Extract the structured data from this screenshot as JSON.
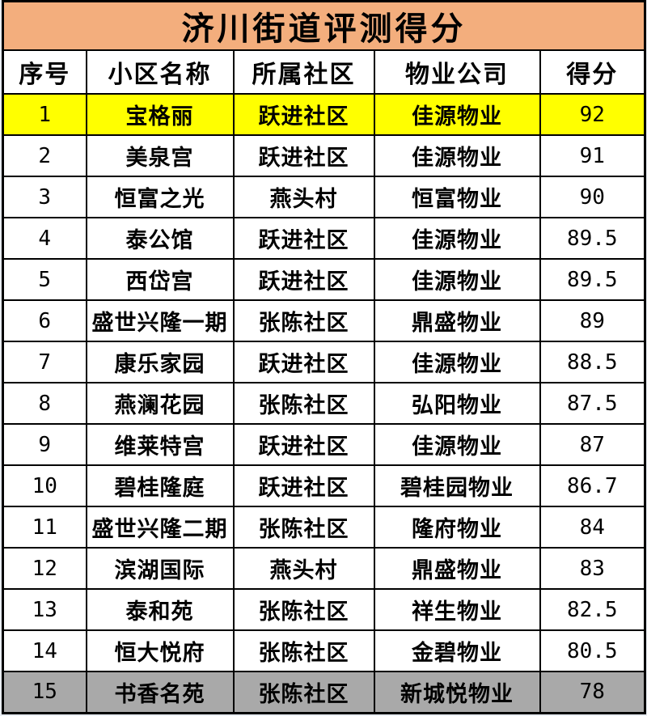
{
  "title": "济川街道评测得分",
  "columns": [
    "序号",
    "小区名称",
    "所属社区",
    "物业公司",
    "得分"
  ],
  "rows": [
    {
      "no": "1",
      "name": "宝格丽",
      "community": "跃进社区",
      "company": "佳源物业",
      "score": "92",
      "highlight": "yellow"
    },
    {
      "no": "2",
      "name": "美泉宫",
      "community": "跃进社区",
      "company": "佳源物业",
      "score": "91",
      "highlight": ""
    },
    {
      "no": "3",
      "name": "恒富之光",
      "community": "燕头村",
      "company": "恒富物业",
      "score": "90",
      "highlight": ""
    },
    {
      "no": "4",
      "name": "泰公馆",
      "community": "跃进社区",
      "company": "佳源物业",
      "score": "89.5",
      "highlight": ""
    },
    {
      "no": "5",
      "name": "西岱宫",
      "community": "跃进社区",
      "company": "佳源物业",
      "score": "89.5",
      "highlight": ""
    },
    {
      "no": "6",
      "name": "盛世兴隆一期",
      "community": "张陈社区",
      "company": "鼎盛物业",
      "score": "89",
      "highlight": ""
    },
    {
      "no": "7",
      "name": "康乐家园",
      "community": "跃进社区",
      "company": "佳源物业",
      "score": "88.5",
      "highlight": ""
    },
    {
      "no": "8",
      "name": "燕澜花园",
      "community": "张陈社区",
      "company": "弘阳物业",
      "score": "87.5",
      "highlight": ""
    },
    {
      "no": "9",
      "name": "维莱特宫",
      "community": "跃进社区",
      "company": "佳源物业",
      "score": "87",
      "highlight": ""
    },
    {
      "no": "10",
      "name": "碧桂隆庭",
      "community": "跃进社区",
      "company": "碧桂园物业",
      "score": "86.7",
      "highlight": ""
    },
    {
      "no": "11",
      "name": "盛世兴隆二期",
      "community": "张陈社区",
      "company": "隆府物业",
      "score": "84",
      "highlight": ""
    },
    {
      "no": "12",
      "name": "滨湖国际",
      "community": "燕头村",
      "company": "鼎盛物业",
      "score": "83",
      "highlight": ""
    },
    {
      "no": "13",
      "name": "泰和苑",
      "community": "张陈社区",
      "company": "祥生物业",
      "score": "82.5",
      "highlight": ""
    },
    {
      "no": "14",
      "name": "恒大悦府",
      "community": "张陈社区",
      "company": "金碧物业",
      "score": "80.5",
      "highlight": ""
    },
    {
      "no": "15",
      "name": "书香名苑",
      "community": "张陈社区",
      "company": "新城悦物业",
      "score": "78",
      "highlight": "gray"
    }
  ],
  "colors": {
    "title_bg": "#F3AE7D",
    "title_text": "#FFFFFF",
    "highlight_yellow": "#FFFF00",
    "highlight_gray": "#A9A9A9",
    "border": "#000000",
    "page_bg": "#E9EEF4",
    "cell_text": "#000000"
  }
}
